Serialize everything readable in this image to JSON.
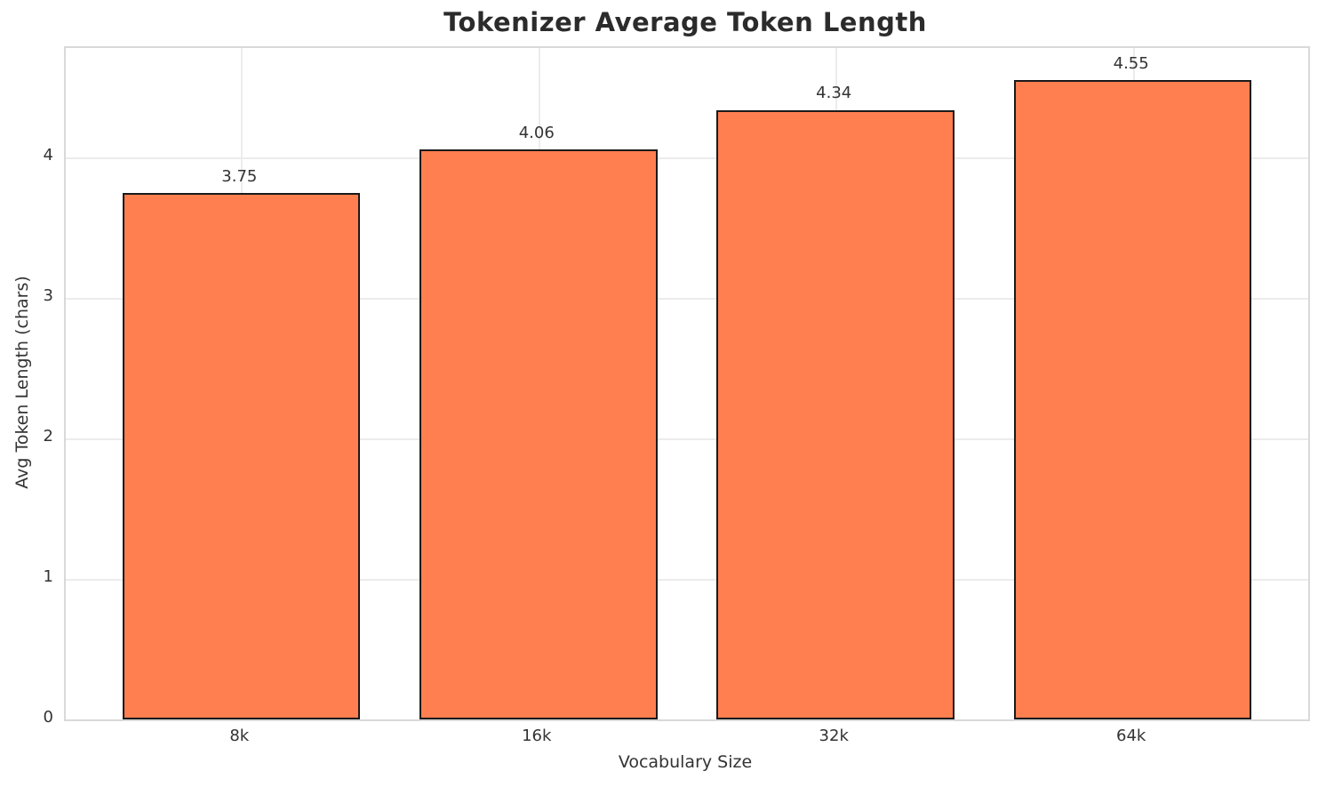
{
  "chart_data": {
    "type": "bar",
    "title": "Tokenizer Average Token Length",
    "xlabel": "Vocabulary Size",
    "ylabel": "Avg Token Length (chars)",
    "categories": [
      "8k",
      "16k",
      "32k",
      "64k"
    ],
    "values": [
      3.75,
      4.06,
      4.34,
      4.55
    ],
    "value_labels": [
      "3.75",
      "4.06",
      "4.34",
      "4.55"
    ],
    "yticks": [
      0,
      1,
      2,
      3,
      4
    ],
    "ylim": [
      0,
      4.78
    ],
    "grid": true,
    "legend": "none",
    "bar_color": "#FF7F50",
    "bar_edge_color": "#1a1a1a",
    "text_color": "#333333",
    "title_color": "#2b2b2b",
    "grid_color": "#ececec",
    "spine_color": "#d9d9d9"
  }
}
